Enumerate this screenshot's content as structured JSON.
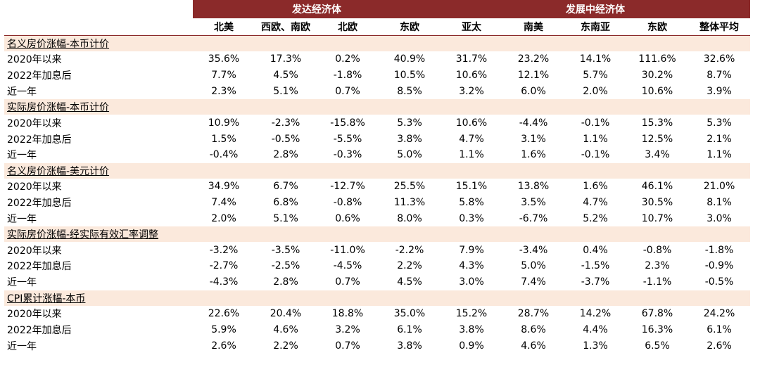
{
  "groups": [
    {
      "label": "发达经济体",
      "span": 4
    },
    {
      "label": "发展中经济体",
      "span": 5
    }
  ],
  "columns": [
    "北美",
    "西欧、南欧",
    "北欧",
    "东欧",
    "亚太",
    "南美",
    "东南亚",
    "东欧",
    "整体平均"
  ],
  "sections": [
    {
      "title": "名义房价涨幅-本币计价",
      "rows": [
        {
          "label": "2020年以来",
          "values": [
            "35.6%",
            "17.3%",
            "0.2%",
            "40.9%",
            "31.7%",
            "23.2%",
            "14.1%",
            "111.6%",
            "32.6%"
          ]
        },
        {
          "label": "2022年加息后",
          "values": [
            "7.7%",
            "4.5%",
            "-1.8%",
            "10.5%",
            "10.6%",
            "12.1%",
            "5.7%",
            "30.2%",
            "8.7%"
          ]
        },
        {
          "label": "近一年",
          "values": [
            "2.3%",
            "5.1%",
            "0.7%",
            "8.5%",
            "3.2%",
            "6.0%",
            "2.0%",
            "10.6%",
            "3.9%"
          ]
        }
      ]
    },
    {
      "title": "实际房价涨幅-本币计价",
      "rows": [
        {
          "label": "2020年以来",
          "values": [
            "10.9%",
            "-2.3%",
            "-15.8%",
            "5.3%",
            "10.6%",
            "-4.4%",
            "-0.1%",
            "15.3%",
            "5.3%"
          ]
        },
        {
          "label": "2022年加息后",
          "values": [
            "1.5%",
            "-0.5%",
            "-5.5%",
            "3.8%",
            "4.7%",
            "3.1%",
            "1.1%",
            "12.5%",
            "2.1%"
          ]
        },
        {
          "label": "近一年",
          "values": [
            "-0.4%",
            "2.8%",
            "-0.3%",
            "5.0%",
            "1.1%",
            "1.6%",
            "-0.1%",
            "3.4%",
            "1.1%"
          ]
        }
      ]
    },
    {
      "title": "名义房价涨幅-美元计价",
      "rows": [
        {
          "label": "2020年以来",
          "values": [
            "34.9%",
            "6.7%",
            "-12.7%",
            "25.5%",
            "15.1%",
            "13.8%",
            "1.6%",
            "46.1%",
            "21.0%"
          ]
        },
        {
          "label": "2022年加息后",
          "values": [
            "7.4%",
            "6.8%",
            "-0.8%",
            "11.3%",
            "5.8%",
            "3.5%",
            "4.7%",
            "30.5%",
            "8.1%"
          ]
        },
        {
          "label": "近一年",
          "values": [
            "2.0%",
            "5.1%",
            "0.6%",
            "8.0%",
            "0.3%",
            "-6.7%",
            "5.2%",
            "10.7%",
            "3.0%"
          ]
        }
      ]
    },
    {
      "title": "实际房价涨幅-经实际有效汇率调整",
      "rows": [
        {
          "label": "2020年以来",
          "values": [
            "-3.2%",
            "-3.5%",
            "-11.0%",
            "-2.2%",
            "7.9%",
            "-3.4%",
            "0.4%",
            "-0.8%",
            "-1.8%"
          ]
        },
        {
          "label": "2022年加息后",
          "values": [
            "-2.7%",
            "-2.5%",
            "-4.5%",
            "2.2%",
            "4.3%",
            "5.0%",
            "-1.5%",
            "2.3%",
            "-0.9%"
          ]
        },
        {
          "label": "近一年",
          "values": [
            "-4.3%",
            "2.8%",
            "0.7%",
            "4.5%",
            "3.0%",
            "7.4%",
            "-3.7%",
            "-1.1%",
            "-0.5%"
          ]
        }
      ]
    },
    {
      "title": "CPI累计涨幅-本币",
      "rows": [
        {
          "label": "2020年以来",
          "values": [
            "22.6%",
            "20.4%",
            "18.8%",
            "35.0%",
            "15.2%",
            "28.7%",
            "14.2%",
            "67.8%",
            "24.2%"
          ]
        },
        {
          "label": "2022年加息后",
          "values": [
            "5.9%",
            "4.6%",
            "3.2%",
            "6.1%",
            "3.8%",
            "8.6%",
            "4.4%",
            "16.3%",
            "6.1%"
          ]
        },
        {
          "label": "近一年",
          "values": [
            "2.6%",
            "2.2%",
            "0.7%",
            "3.8%",
            "0.9%",
            "4.6%",
            "1.3%",
            "6.5%",
            "2.6%"
          ]
        }
      ]
    }
  ]
}
